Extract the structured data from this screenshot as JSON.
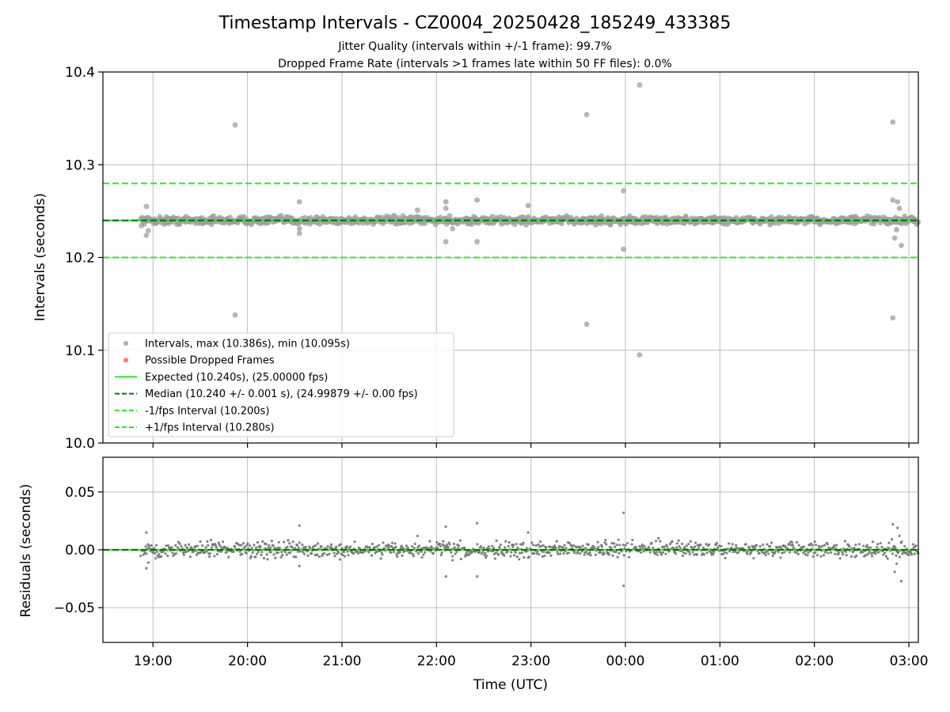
{
  "title": "Timestamp Intervals - CZ0004_20250428_185249_433385",
  "subtitle_1": "Jitter Quality (intervals within +/-1 frame): 99.7%",
  "subtitle_2": "Dropped Frame Rate (intervals >1 frames late within 50 FF files): 0.0%",
  "colors": {
    "intervals": "#9e9e9e",
    "residuals": "#757575",
    "dropped": "#ff5a5a",
    "expected": "#22ee22",
    "median": "#0c6e0c",
    "bounds": "#22ee22",
    "grid": "#bdbdbd"
  },
  "chart_data": [
    {
      "type": "scatter",
      "name": "intervals-panel",
      "xlabel": "",
      "ylabel": "Intervals (seconds)",
      "ylim": [
        10.0,
        10.4
      ],
      "yticks": [
        10.0,
        10.1,
        10.2,
        10.3,
        10.4
      ],
      "ytick_labels": [
        "10.0",
        "10.1",
        "10.2",
        "10.3",
        "10.4"
      ],
      "xlim_hours": [
        18.47,
        27.1
      ],
      "grid": true,
      "legend_position": "lower-left",
      "legend": [
        {
          "label": "Intervals, max (10.386s), min (10.095s)",
          "kind": "marker",
          "color": "#9e9e9e"
        },
        {
          "label": "Possible Dropped Frames",
          "kind": "marker",
          "color": "#ff5a5a"
        },
        {
          "label": "Expected (10.240s), (25.00000 fps)",
          "kind": "solid",
          "color": "#22ee22"
        },
        {
          "label": "Median (10.240 +/- 0.001 s), (24.99879 +/- 0.00 fps)",
          "kind": "dashed",
          "color": "#0c6e0c"
        },
        {
          "label": "-1/fps Interval (10.200s)",
          "kind": "dashed",
          "color": "#22ee22"
        },
        {
          "label": "+1/fps Interval (10.280s)",
          "kind": "dashed",
          "color": "#22ee22"
        }
      ],
      "reference_lines": {
        "expected": 10.24,
        "median": 10.24,
        "minus_1fps": 10.2,
        "plus_1fps": 10.28
      },
      "baseline_band": {
        "x_start_hours": 18.87,
        "x_end_hours": 27.1,
        "center": 10.24,
        "spread": 0.0025
      },
      "outliers": [
        {
          "x": 18.93,
          "y": 10.255
        },
        {
          "x": 18.93,
          "y": 10.224
        },
        {
          "x": 18.95,
          "y": 10.229
        },
        {
          "x": 19.87,
          "y": 10.343
        },
        {
          "x": 19.87,
          "y": 10.138
        },
        {
          "x": 20.55,
          "y": 10.26
        },
        {
          "x": 20.55,
          "y": 10.226
        },
        {
          "x": 20.55,
          "y": 10.231
        },
        {
          "x": 21.8,
          "y": 10.251
        },
        {
          "x": 22.1,
          "y": 10.26
        },
        {
          "x": 22.1,
          "y": 10.253
        },
        {
          "x": 22.1,
          "y": 10.217
        },
        {
          "x": 22.17,
          "y": 10.231
        },
        {
          "x": 22.43,
          "y": 10.262
        },
        {
          "x": 22.43,
          "y": 10.217
        },
        {
          "x": 22.97,
          "y": 10.256
        },
        {
          "x": 23.59,
          "y": 10.354
        },
        {
          "x": 23.59,
          "y": 10.128
        },
        {
          "x": 23.98,
          "y": 10.272
        },
        {
          "x": 23.98,
          "y": 10.209
        },
        {
          "x": 24.15,
          "y": 10.386
        },
        {
          "x": 24.15,
          "y": 10.095
        },
        {
          "x": 26.83,
          "y": 10.346
        },
        {
          "x": 26.83,
          "y": 10.135
        },
        {
          "x": 26.83,
          "y": 10.262
        },
        {
          "x": 26.88,
          "y": 10.26
        },
        {
          "x": 26.9,
          "y": 10.253
        },
        {
          "x": 26.85,
          "y": 10.221
        },
        {
          "x": 26.92,
          "y": 10.213
        },
        {
          "x": 26.87,
          "y": 10.23
        }
      ]
    },
    {
      "type": "scatter",
      "name": "residuals-panel",
      "xlabel": "Time (UTC)",
      "ylabel": "Residuals (seconds)",
      "ylim": [
        -0.08,
        0.08
      ],
      "yticks": [
        -0.05,
        0.0,
        0.05
      ],
      "ytick_labels": [
        "−0.05",
        "0.00",
        "0.05"
      ],
      "xlim_hours": [
        18.47,
        27.1
      ],
      "xticks_hours": [
        19,
        20,
        21,
        22,
        23,
        24,
        25,
        26,
        27
      ],
      "xtick_labels": [
        "19:00",
        "20:00",
        "21:00",
        "22:00",
        "23:00",
        "00:00",
        "01:00",
        "02:00",
        "03:00"
      ],
      "grid": true,
      "reference_lines": {
        "expected": 0.0,
        "median": 0.0
      },
      "baseline_band": {
        "x_start_hours": 18.87,
        "x_end_hours": 27.1,
        "center": 0.0,
        "spread": 0.004
      },
      "outliers": [
        {
          "x": 18.93,
          "y": 0.015
        },
        {
          "x": 18.93,
          "y": -0.016
        },
        {
          "x": 18.95,
          "y": -0.011
        },
        {
          "x": 20.55,
          "y": 0.021
        },
        {
          "x": 20.55,
          "y": -0.014
        },
        {
          "x": 21.8,
          "y": 0.012
        },
        {
          "x": 22.1,
          "y": 0.02
        },
        {
          "x": 22.1,
          "y": -0.023
        },
        {
          "x": 22.17,
          "y": -0.009
        },
        {
          "x": 22.43,
          "y": 0.023
        },
        {
          "x": 22.43,
          "y": -0.023
        },
        {
          "x": 22.97,
          "y": 0.015
        },
        {
          "x": 23.98,
          "y": 0.032
        },
        {
          "x": 23.98,
          "y": -0.031
        },
        {
          "x": 24.35,
          "y": 0.01
        },
        {
          "x": 26.83,
          "y": 0.022
        },
        {
          "x": 26.88,
          "y": 0.019
        },
        {
          "x": 26.85,
          "y": -0.019
        },
        {
          "x": 26.92,
          "y": -0.027
        },
        {
          "x": 26.9,
          "y": 0.012
        },
        {
          "x": 26.87,
          "y": -0.012
        }
      ]
    }
  ]
}
